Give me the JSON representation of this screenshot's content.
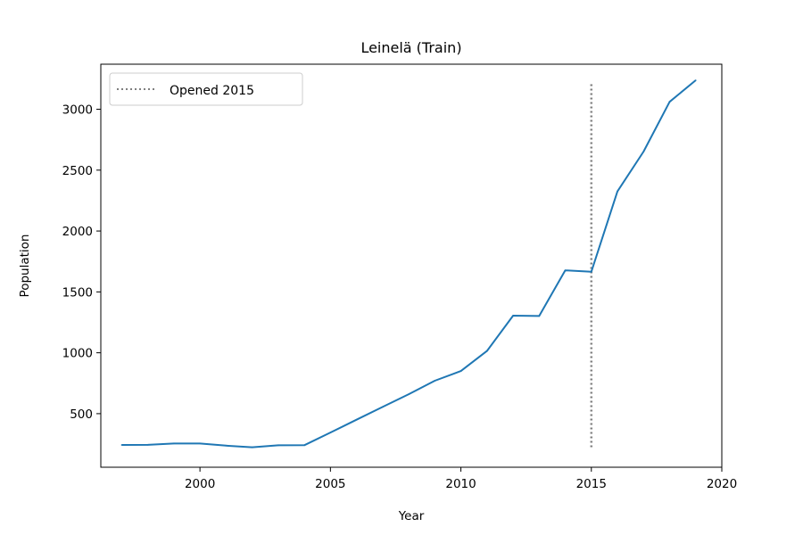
{
  "chart_data": {
    "type": "line",
    "title": "Leinelä (Train)",
    "xlabel": "Year",
    "ylabel": "Population",
    "xlim": [
      1996.2,
      2020.0
    ],
    "ylim": [
      60,
      3370
    ],
    "xticks": [
      2000,
      2005,
      2010,
      2015,
      2020
    ],
    "yticks": [
      500,
      1000,
      1500,
      2000,
      2500,
      3000
    ],
    "grid": false,
    "legend": {
      "position": "top-left",
      "entries": [
        {
          "label": "Opened 2015",
          "style": "dotted",
          "color": "#7f7f7f"
        }
      ]
    },
    "series": [
      {
        "color": "#1f77b4",
        "x": [
          1997,
          1998,
          1999,
          2000,
          2001,
          2002,
          2003,
          2004,
          2005,
          2006,
          2007,
          2008,
          2009,
          2010,
          2011,
          2012,
          2013,
          2014,
          2015,
          2016,
          2017,
          2018,
          2019
        ],
        "y": [
          243,
          244,
          255,
          255,
          237,
          224,
          240,
          241,
          345,
          450,
          555,
          660,
          770,
          850,
          1015,
          1305,
          1302,
          1677,
          1666,
          2325,
          2652,
          3061,
          3238
        ]
      }
    ],
    "annotations": [
      {
        "type": "vline",
        "x": 2015,
        "y_range": [
          225,
          3225
        ],
        "style": "dotted",
        "color": "#7f7f7f",
        "label": "Opened 2015"
      }
    ]
  }
}
